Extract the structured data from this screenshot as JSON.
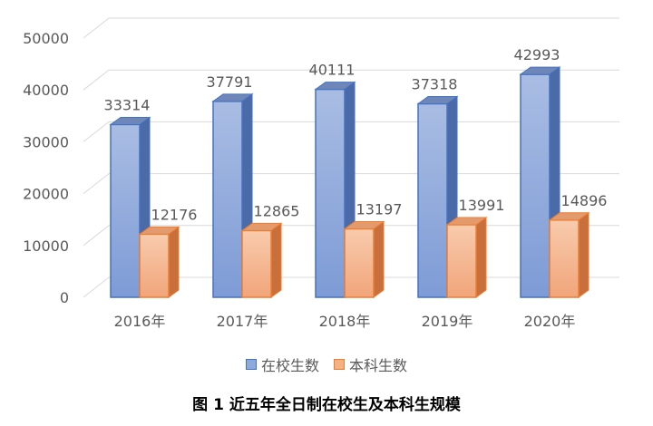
{
  "chart_data": {
    "type": "bar",
    "categories": [
      "2016年",
      "2017年",
      "2018年",
      "2019年",
      "2020年"
    ],
    "series": [
      {
        "name": "在校生数",
        "values": [
          33314,
          37791,
          40111,
          37318,
          42993
        ],
        "color": "#8eaadb"
      },
      {
        "name": "本科生数",
        "values": [
          12176,
          12865,
          13197,
          13991,
          14896
        ],
        "color": "#f4b183"
      }
    ],
    "ylim": [
      0,
      50000
    ],
    "yticks": [
      "0",
      "10000",
      "20000",
      "30000",
      "40000",
      "50000"
    ],
    "grid": true,
    "legend_position": "bottom",
    "style": "3d-clustered-column"
  },
  "caption": "图 1  近五年全日制在校生及本科生规模"
}
